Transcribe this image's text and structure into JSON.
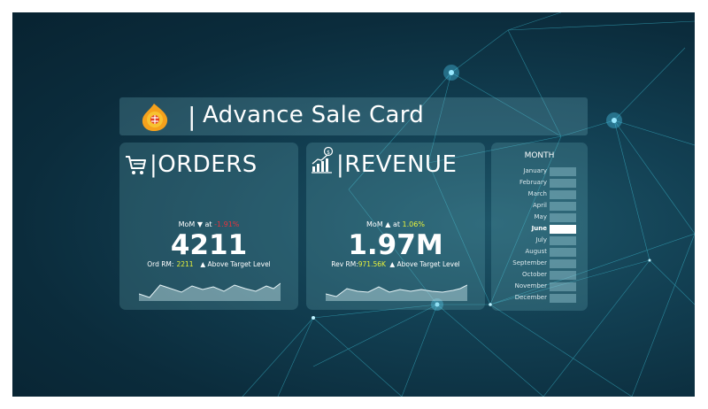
{
  "header": {
    "separator": "|",
    "title": "Advance Sale Card"
  },
  "orders_card": {
    "title": "|ORDERS",
    "mom_label": "MoM ▼ at",
    "mom_value": "-1.91%",
    "big_value": "4211",
    "sub_label": "Ord RM:",
    "sub_value": "2211",
    "sub_status": "▲ Above Target Level"
  },
  "revenue_card": {
    "title": "|REVENUE",
    "mom_label": "MoM ▲ at",
    "mom_value": "1.06%",
    "big_value": "1.97M",
    "sub_label": "Rev RM:",
    "sub_value": "971.56K",
    "sub_status": "▲ Above Target Level"
  },
  "month_slicer": {
    "title": "MONTH",
    "months": [
      "January",
      "February",
      "March",
      "April",
      "May",
      "June",
      "July",
      "August",
      "September",
      "October",
      "November",
      "December"
    ],
    "selected": "June"
  },
  "icons": [
    "logo-icon",
    "cart-icon",
    "revenue-chart-icon"
  ],
  "colors": {
    "negative": "#e8323c",
    "highlight": "#e8f23a",
    "text": "#ffffff"
  }
}
